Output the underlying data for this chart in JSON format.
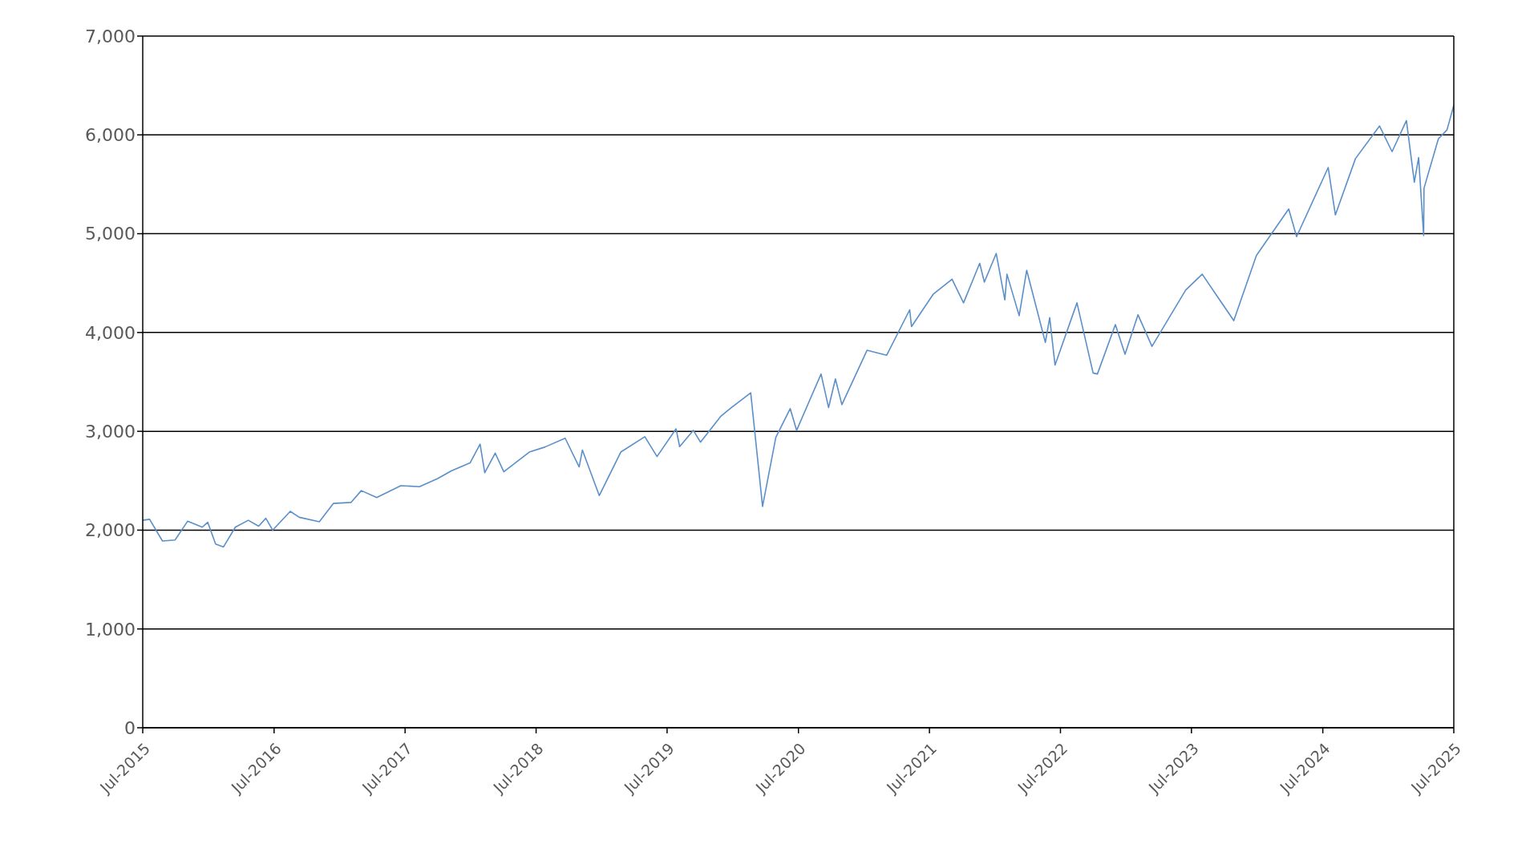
{
  "chart_data": {
    "type": "line",
    "x": [
      "2015-07-01",
      "2015-07-20",
      "2015-08-25",
      "2015-09-29",
      "2015-11-03",
      "2015-12-14",
      "2015-12-29",
      "2016-01-20",
      "2016-02-11",
      "2016-03-15",
      "2016-04-20",
      "2016-05-19",
      "2016-06-08",
      "2016-06-27",
      "2016-08-15",
      "2016-09-09",
      "2016-11-04",
      "2016-12-13",
      "2017-01-31",
      "2017-03-01",
      "2017-04-13",
      "2017-06-19",
      "2017-08-10",
      "2017-09-29",
      "2017-11-07",
      "2017-12-29",
      "2018-01-26",
      "2018-02-08",
      "2018-03-09",
      "2018-04-02",
      "2018-06-12",
      "2018-07-25",
      "2018-09-20",
      "2018-10-29",
      "2018-11-07",
      "2018-12-24",
      "2019-02-22",
      "2019-04-30",
      "2019-06-03",
      "2019-07-26",
      "2019-08-05",
      "2019-09-12",
      "2019-10-02",
      "2019-11-27",
      "2019-12-27",
      "2020-02-19",
      "2020-03-23",
      "2020-04-29",
      "2020-06-08",
      "2020-06-26",
      "2020-09-02",
      "2020-09-23",
      "2020-10-12",
      "2020-10-30",
      "2021-01-08",
      "2021-03-04",
      "2021-05-07",
      "2021-05-12",
      "2021-07-12",
      "2021-09-02",
      "2021-10-04",
      "2021-11-18",
      "2021-12-01",
      "2022-01-03",
      "2022-01-27",
      "2022-02-02",
      "2022-03-08",
      "2022-03-29",
      "2022-05-20",
      "2022-06-01",
      "2022-06-16",
      "2022-08-16",
      "2022-09-30",
      "2022-10-12",
      "2022-12-01",
      "2022-12-28",
      "2023-02-02",
      "2023-03-13",
      "2023-06-15",
      "2023-07-31",
      "2023-10-27",
      "2023-12-29",
      "2024-03-28",
      "2024-04-19",
      "2024-07-16",
      "2024-08-05",
      "2024-09-30",
      "2024-12-06",
      "2025-01-10",
      "2025-02-19",
      "2025-03-13",
      "2025-03-25",
      "2025-04-08",
      "2025-04-09",
      "2025-05-19",
      "2025-06-12",
      "2025-07-01"
    ],
    "series": [
      {
        "color": "#5b8fc9",
        "values": [
          2100,
          2110,
          1890,
          1900,
          2090,
          2030,
          2080,
          1860,
          1830,
          2030,
          2100,
          2040,
          2120,
          2000,
          2190,
          2130,
          2085,
          2270,
          2280,
          2400,
          2330,
          2450,
          2440,
          2520,
          2600,
          2680,
          2870,
          2580,
          2780,
          2590,
          2790,
          2840,
          2930,
          2640,
          2810,
          2350,
          2790,
          2945,
          2745,
          3025,
          2845,
          3010,
          2890,
          3150,
          3240,
          3390,
          2240,
          2940,
          3230,
          3010,
          3580,
          3240,
          3530,
          3270,
          3820,
          3770,
          4230,
          4060,
          4390,
          4540,
          4300,
          4700,
          4510,
          4800,
          4330,
          4590,
          4170,
          4630,
          3900,
          4150,
          3670,
          4300,
          3590,
          3580,
          4080,
          3780,
          4180,
          3860,
          4430,
          4590,
          4120,
          4780,
          5250,
          4970,
          5670,
          5190,
          5760,
          6090,
          5830,
          6145,
          5520,
          5770,
          4980,
          5460,
          5960,
          6050,
          6300
        ]
      }
    ],
    "xlim": [
      "2015-07-01",
      "2025-07-01"
    ],
    "xticks": [
      {
        "value": "2015-07-01",
        "label": "Jul-2015"
      },
      {
        "value": "2016-07-01",
        "label": "Jul-2016"
      },
      {
        "value": "2017-07-01",
        "label": "Jul-2017"
      },
      {
        "value": "2018-07-01",
        "label": "Jul-2018"
      },
      {
        "value": "2019-07-01",
        "label": "Jul-2019"
      },
      {
        "value": "2020-07-01",
        "label": "Jul-2020"
      },
      {
        "value": "2021-07-01",
        "label": "Jul-2021"
      },
      {
        "value": "2022-07-01",
        "label": "Jul-2022"
      },
      {
        "value": "2023-07-01",
        "label": "Jul-2023"
      },
      {
        "value": "2024-07-01",
        "label": "Jul-2024"
      },
      {
        "value": "2025-07-01",
        "label": "Jul-2025"
      }
    ],
    "ylim": [
      0,
      7000
    ],
    "yticks": [
      {
        "value": 0,
        "label": "0"
      },
      {
        "value": 1000,
        "label": "1,000"
      },
      {
        "value": 2000,
        "label": "2,000"
      },
      {
        "value": 3000,
        "label": "3,000"
      },
      {
        "value": 4000,
        "label": "4,000"
      },
      {
        "value": 5000,
        "label": "5,000"
      },
      {
        "value": 6000,
        "label": "6,000"
      },
      {
        "value": 7000,
        "label": "7,000"
      }
    ],
    "grid": "y",
    "marker": "none",
    "line_style": "solid"
  }
}
